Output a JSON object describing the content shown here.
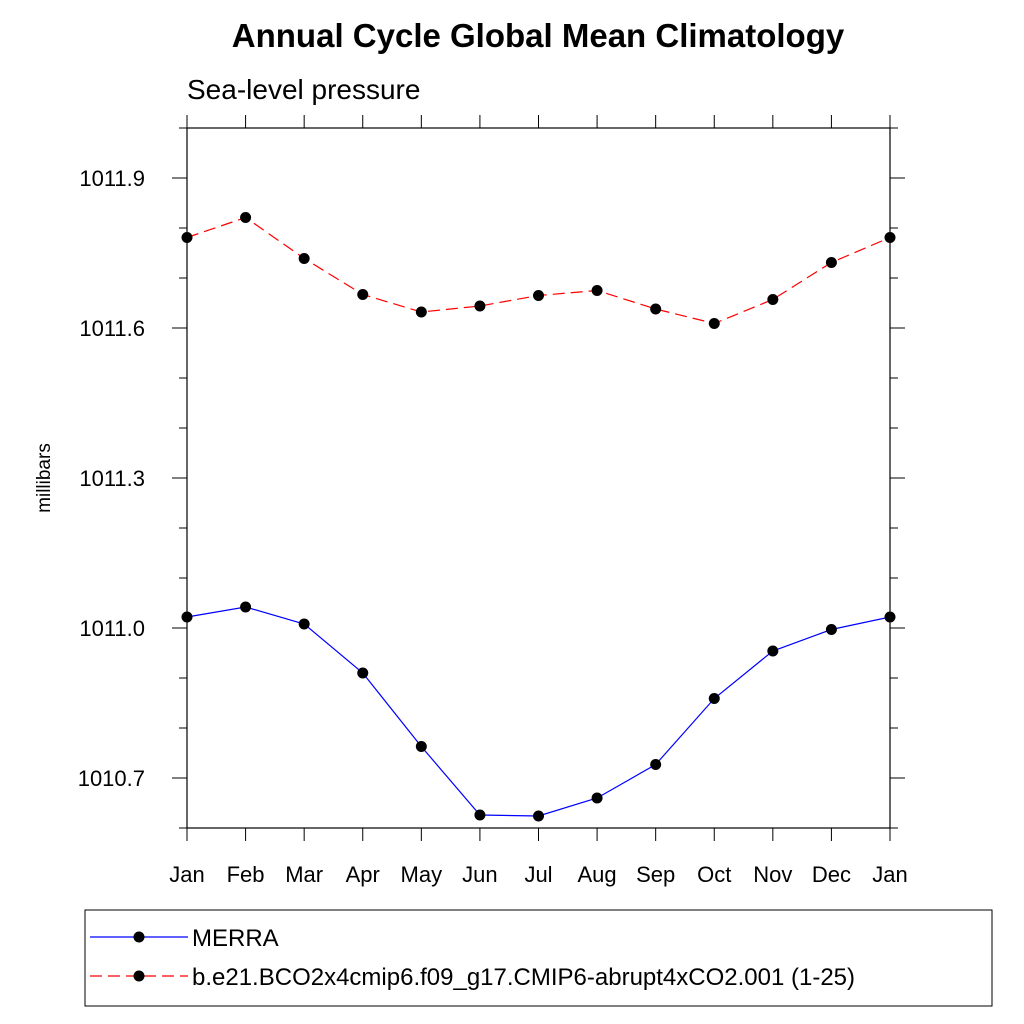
{
  "chart_data": {
    "type": "line",
    "title": "Annual Cycle Global Mean Climatology",
    "subtitle": "Sea-level pressure",
    "xlabel": "",
    "ylabel": "millibars",
    "categories": [
      "Jan",
      "Feb",
      "Mar",
      "Apr",
      "May",
      "Jun",
      "Jul",
      "Aug",
      "Sep",
      "Oct",
      "Nov",
      "Dec",
      "Jan"
    ],
    "ylim": [
      1010.6,
      1012.0
    ],
    "yticks": [
      1010.7,
      1011.0,
      1011.3,
      1011.6,
      1011.9
    ],
    "ytick_labels": [
      "1010.7",
      "1011.0",
      "1011.3",
      "1011.6",
      "1011.9"
    ],
    "grid": false,
    "legend_position": "bottom",
    "series": [
      {
        "name": "MERRA",
        "color": "#0000ff",
        "dash": "solid",
        "values": [
          1011.022,
          1011.042,
          1011.008,
          1010.91,
          1010.763,
          1010.626,
          1010.624,
          1010.66,
          1010.727,
          1010.859,
          1010.954,
          1010.997,
          1011.022
        ]
      },
      {
        "name": "b.e21.BCO2x4cmip6.f09_g17.CMIP6-abrupt4xCO2.001 (1-25)",
        "color": "#ff0000",
        "dash": "dashed",
        "values": [
          1011.781,
          1011.821,
          1011.739,
          1011.667,
          1011.632,
          1011.644,
          1011.665,
          1011.675,
          1011.638,
          1011.609,
          1011.657,
          1011.731,
          1011.781
        ]
      }
    ]
  }
}
